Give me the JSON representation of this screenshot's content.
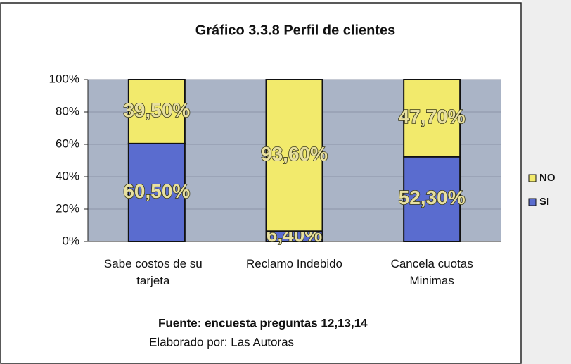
{
  "chart_data": {
    "type": "stacked_bar",
    "title": "Gráfico 3.3.8 Perfil de clientes",
    "categories": [
      "Sabe costos de su tarjeta",
      "Reclamo Indebido",
      "Cancela cuotas Minimas"
    ],
    "series": [
      {
        "name": "SI",
        "color": "#5a6ccf",
        "values": [
          60.5,
          6.4,
          52.3
        ],
        "value_labels": [
          "60,50%",
          "6,40%",
          "52,30%"
        ]
      },
      {
        "name": "NO",
        "color": "#f2ea6c",
        "values": [
          39.5,
          93.6,
          47.7
        ],
        "value_labels": [
          "39,50%",
          "93,60%",
          "47,70%"
        ]
      }
    ],
    "ylim": [
      0,
      100
    ],
    "yticks": [
      {
        "value": 0,
        "label": "0%"
      },
      {
        "value": 20,
        "label": "20%"
      },
      {
        "value": 40,
        "label": "40%"
      },
      {
        "value": 60,
        "label": "60%"
      },
      {
        "value": 80,
        "label": "80%"
      },
      {
        "value": 100,
        "label": "100%"
      }
    ],
    "grid": true,
    "legend": "right",
    "notes": [
      "Fuente: encuesta preguntas 12,13,14",
      "Elaborado por: Las Autoras"
    ]
  }
}
